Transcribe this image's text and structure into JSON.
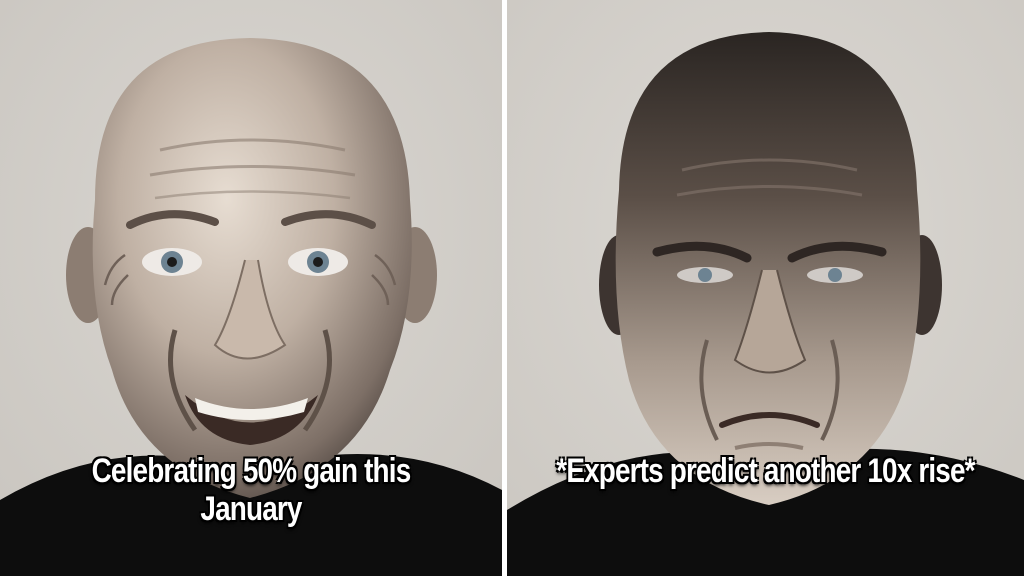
{
  "panels": [
    {
      "caption": "Celebrating 50% gain this January",
      "expression": "smiling-face"
    },
    {
      "caption": "*Experts predict another 10x rise*",
      "expression": "frowning-face"
    }
  ],
  "colors": {
    "background_left": "#d4d1cc",
    "background_right": "#d7d4cf",
    "shirt": "#0d0d0d",
    "caption_text": "#ffffff"
  }
}
